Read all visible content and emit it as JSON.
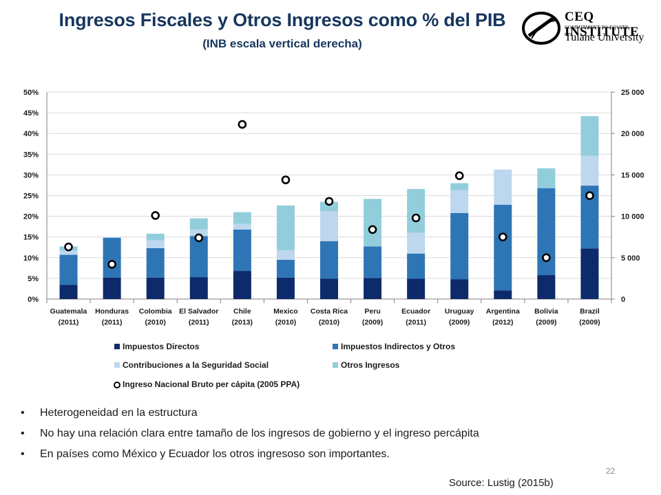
{
  "header": {
    "title": "Ingresos Fiscales y Otros Ingresos como % del PIB",
    "subtitle": "(INB escala vertical derecha)",
    "logo_line1": "CEQ INSTITUTE",
    "logo_line2": "COMMITMENT TO EQUITY",
    "logo_line3": "Tulane University"
  },
  "chart_data": {
    "type": "bar",
    "stacked": true,
    "categories": [
      "Guatemala (2011)",
      "Honduras (2011)",
      "Colombia (2010)",
      "El Salvador (2011)",
      "Chile (2013)",
      "Mexico (2010)",
      "Costa Rica (2010)",
      "Peru (2009)",
      "Ecuador (2011)",
      "Uruguay (2009)",
      "Argentina (2012)",
      "Bolivia (2009)",
      "Brazil (2009)"
    ],
    "category_lines": [
      [
        "Guatemala",
        "(2011)"
      ],
      [
        "Honduras",
        "(2011)"
      ],
      [
        "Colombia",
        "(2010)"
      ],
      [
        "El Salvador",
        "(2011)"
      ],
      [
        "Chile",
        "(2013)"
      ],
      [
        "Mexico",
        "(2010)"
      ],
      [
        "Costa Rica",
        "(2010)"
      ],
      [
        "Peru",
        "(2009)"
      ],
      [
        "Ecuador",
        "(2011)"
      ],
      [
        "Uruguay",
        "(2009)"
      ],
      [
        "Argentina",
        "(2012)"
      ],
      [
        "Bolivia",
        "(2009)"
      ],
      [
        "Brazil",
        "(2009)"
      ]
    ],
    "series": [
      {
        "name": "Impuestos Directos",
        "color": "#0d2a6b",
        "values": [
          3.4,
          5.2,
          5.2,
          5.3,
          6.8,
          5.2,
          4.9,
          5.1,
          4.9,
          4.8,
          2.1,
          5.8,
          12.2
        ]
      },
      {
        "name": "Impuestos Indirectos y Otros",
        "color": "#2e75b6",
        "values": [
          7.3,
          9.6,
          7.1,
          9.9,
          10.0,
          4.3,
          9.1,
          7.6,
          6.1,
          16.0,
          20.7,
          21.0,
          15.2
        ]
      },
      {
        "name": "Contribuciones a la Seguridad Social",
        "color": "#bdd7ee",
        "values": [
          1.0,
          0.2,
          1.9,
          1.6,
          1.4,
          2.3,
          7.2,
          0.0,
          5.0,
          5.5,
          8.5,
          0.0,
          7.2
        ]
      },
      {
        "name": "Otros Ingresos",
        "color": "#92cddc",
        "values": [
          1.0,
          0.0,
          1.6,
          2.7,
          2.8,
          10.8,
          2.3,
          11.5,
          10.6,
          1.7,
          0.0,
          4.8,
          9.6
        ]
      }
    ],
    "line_series": {
      "name": "Ingreso Nacional Bruto per cápita (2005 PPA)",
      "axis": "right",
      "marker": "circle",
      "values": [
        6300,
        4200,
        10100,
        7400,
        21100,
        14400,
        11800,
        8400,
        9800,
        14900,
        7500,
        5000,
        12500
      ]
    },
    "y_left": {
      "min": 0,
      "max": 50,
      "ticks": [
        "0%",
        "5%",
        "10%",
        "15%",
        "20%",
        "25%",
        "30%",
        "35%",
        "40%",
        "45%",
        "50%"
      ]
    },
    "y_right": {
      "min": 0,
      "max": 25000,
      "ticks": [
        "0",
        "5 000",
        "10 000",
        "15 000",
        "20 000",
        "25 000"
      ]
    },
    "grid": true,
    "legend_position": "bottom"
  },
  "bullets": [
    "Heterogeneidad en la estructura",
    "No hay una relación clara entre tamaño de los ingresos de gobierno y el ingreso percápita",
    "En países como México y Ecuador los otros ingresoso son importantes."
  ],
  "footer": {
    "page_number": "22",
    "source": "Source: Lustig (2015b)"
  }
}
